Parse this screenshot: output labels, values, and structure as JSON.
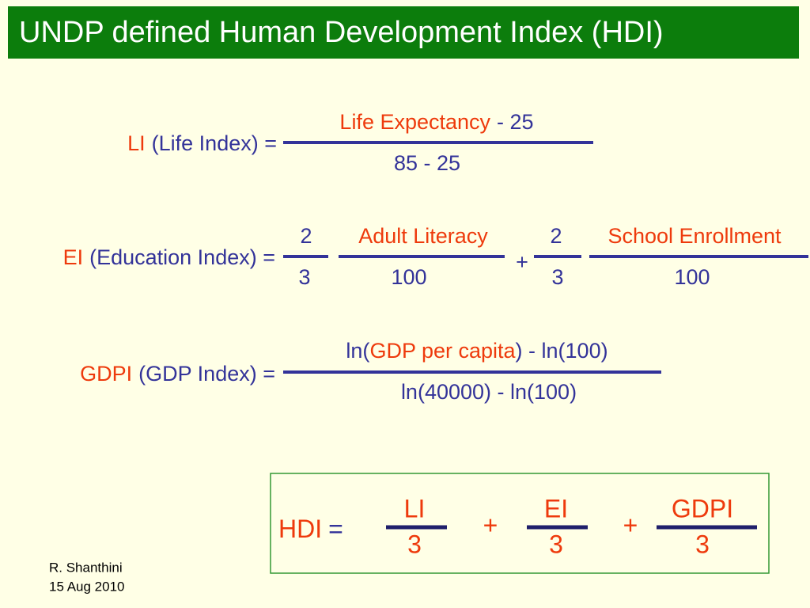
{
  "title": "UNDP defined Human Development Index (HDI)",
  "life_index": {
    "symbol": "LI",
    "label": "(Life Index) =",
    "numerator": {
      "variable": "Life Expectancy",
      "rest": "- 25"
    },
    "denominator": "85 - 25"
  },
  "education_index": {
    "symbol": "EI",
    "label": "(Education Index) =",
    "fractions": [
      {
        "numerator": "2",
        "denominator": "3"
      },
      {
        "numerator": "Adult Literacy",
        "denominator": "100"
      },
      {
        "numerator": "2",
        "denominator": "3"
      },
      {
        "numerator": "School Enrollment",
        "denominator": "100"
      }
    ],
    "operator": "+"
  },
  "gdp_index": {
    "symbol": "GDPI",
    "label": "(GDP Index) =",
    "numerator": {
      "prefix": "ln(",
      "variable": "GDP per capita",
      "suffix": ") - ln(100)"
    },
    "denominator": "ln(40000) - ln(100)"
  },
  "hdi": {
    "symbol": "HDI",
    "equals": "=",
    "terms": [
      {
        "numerator": "LI",
        "denominator": "3"
      },
      {
        "numerator": "EI",
        "denominator": "3"
      },
      {
        "numerator": "GDPI",
        "denominator": "3"
      }
    ],
    "operators": [
      "+",
      "+"
    ]
  },
  "footer": {
    "author": "R. Shanthini",
    "date": "15 Aug 2010"
  }
}
